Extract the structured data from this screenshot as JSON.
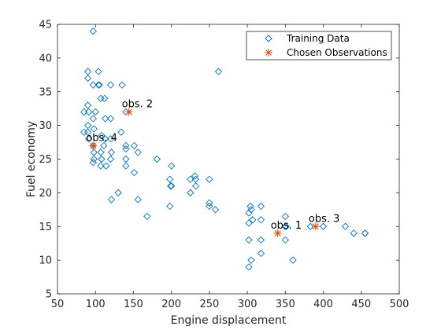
{
  "chart_data": {
    "type": "scatter",
    "xlabel": "Engine displacement",
    "ylabel": "Fuel economy",
    "xlim": [
      50,
      500
    ],
    "ylim": [
      5,
      45
    ],
    "xticks": [
      50,
      100,
      150,
      200,
      250,
      300,
      350,
      400,
      450,
      500
    ],
    "yticks": [
      5,
      10,
      15,
      20,
      25,
      30,
      35,
      40,
      45
    ],
    "grid": false,
    "legend_position": "top-right",
    "colors": {
      "training": "#0072BD",
      "chosen": "#D95319",
      "axis": "#262626"
    },
    "series": [
      {
        "name": "Training Data",
        "marker": "diamond",
        "points": [
          [
            97,
            44
          ],
          [
            90,
            38
          ],
          [
            90,
            37
          ],
          [
            97,
            36
          ],
          [
            104,
            36
          ],
          [
            105,
            36
          ],
          [
            120,
            36
          ],
          [
            135,
            36
          ],
          [
            262,
            38
          ],
          [
            104,
            38
          ],
          [
            107,
            34
          ],
          [
            112,
            34
          ],
          [
            90,
            33
          ],
          [
            100,
            32
          ],
          [
            85,
            32
          ],
          [
            91,
            32
          ],
          [
            113,
            31
          ],
          [
            120,
            31
          ],
          [
            97,
            31
          ],
          [
            140,
            32
          ],
          [
            90,
            30
          ],
          [
            98,
            29.5
          ],
          [
            134,
            29
          ],
          [
            85,
            29
          ],
          [
            90,
            29
          ],
          [
            108,
            28.5
          ],
          [
            113,
            28
          ],
          [
            120,
            28
          ],
          [
            91,
            28
          ],
          [
            97,
            27
          ],
          [
            140,
            27
          ],
          [
            140,
            26.5
          ],
          [
            151,
            27
          ],
          [
            111,
            27
          ],
          [
            98,
            26
          ],
          [
            107,
            26
          ],
          [
            156,
            26
          ],
          [
            121,
            26
          ],
          [
            98,
            25
          ],
          [
            108,
            25
          ],
          [
            120,
            25
          ],
          [
            140,
            25
          ],
          [
            97,
            24.5
          ],
          [
            107,
            24
          ],
          [
            114,
            24
          ],
          [
            140,
            24
          ],
          [
            200,
            24
          ],
          [
            181,
            25
          ],
          [
            151,
            23
          ],
          [
            232,
            22
          ],
          [
            225,
            22
          ],
          [
            250,
            22
          ],
          [
            198,
            22
          ],
          [
            200,
            21
          ],
          [
            199,
            21
          ],
          [
            231,
            22.5
          ],
          [
            232,
            21
          ],
          [
            225,
            20
          ],
          [
            130,
            20
          ],
          [
            121,
            19
          ],
          [
            156,
            19
          ],
          [
            250,
            18.5
          ],
          [
            250,
            18
          ],
          [
            258,
            17.5
          ],
          [
            198,
            18
          ],
          [
            168,
            16.5
          ],
          [
            304,
            18
          ],
          [
            305,
            17.5
          ],
          [
            318,
            18
          ],
          [
            302,
            17
          ],
          [
            307,
            16
          ],
          [
            302,
            15.5
          ],
          [
            318,
            16
          ],
          [
            350,
            16.5
          ],
          [
            350,
            15
          ],
          [
            351,
            15
          ],
          [
            383,
            15
          ],
          [
            400,
            15
          ],
          [
            429,
            15
          ],
          [
            440,
            14
          ],
          [
            455,
            14
          ],
          [
            455,
            14
          ],
          [
            302,
            13
          ],
          [
            318,
            13
          ],
          [
            350,
            13
          ],
          [
            305,
            10
          ],
          [
            360,
            10
          ],
          [
            302,
            9
          ],
          [
            318,
            11
          ]
        ]
      },
      {
        "name": "Chosen Observations",
        "marker": "star",
        "points": [
          [
            340,
            14
          ],
          [
            144,
            32
          ],
          [
            390,
            15
          ],
          [
            97,
            27
          ]
        ]
      }
    ],
    "annotations": [
      {
        "text": "obs. 1",
        "x": 340,
        "y": 14
      },
      {
        "text": "obs. 2",
        "x": 144,
        "y": 32
      },
      {
        "text": "obs. 3",
        "x": 390,
        "y": 15
      },
      {
        "text": "obs. 4",
        "x": 97,
        "y": 27
      }
    ]
  }
}
